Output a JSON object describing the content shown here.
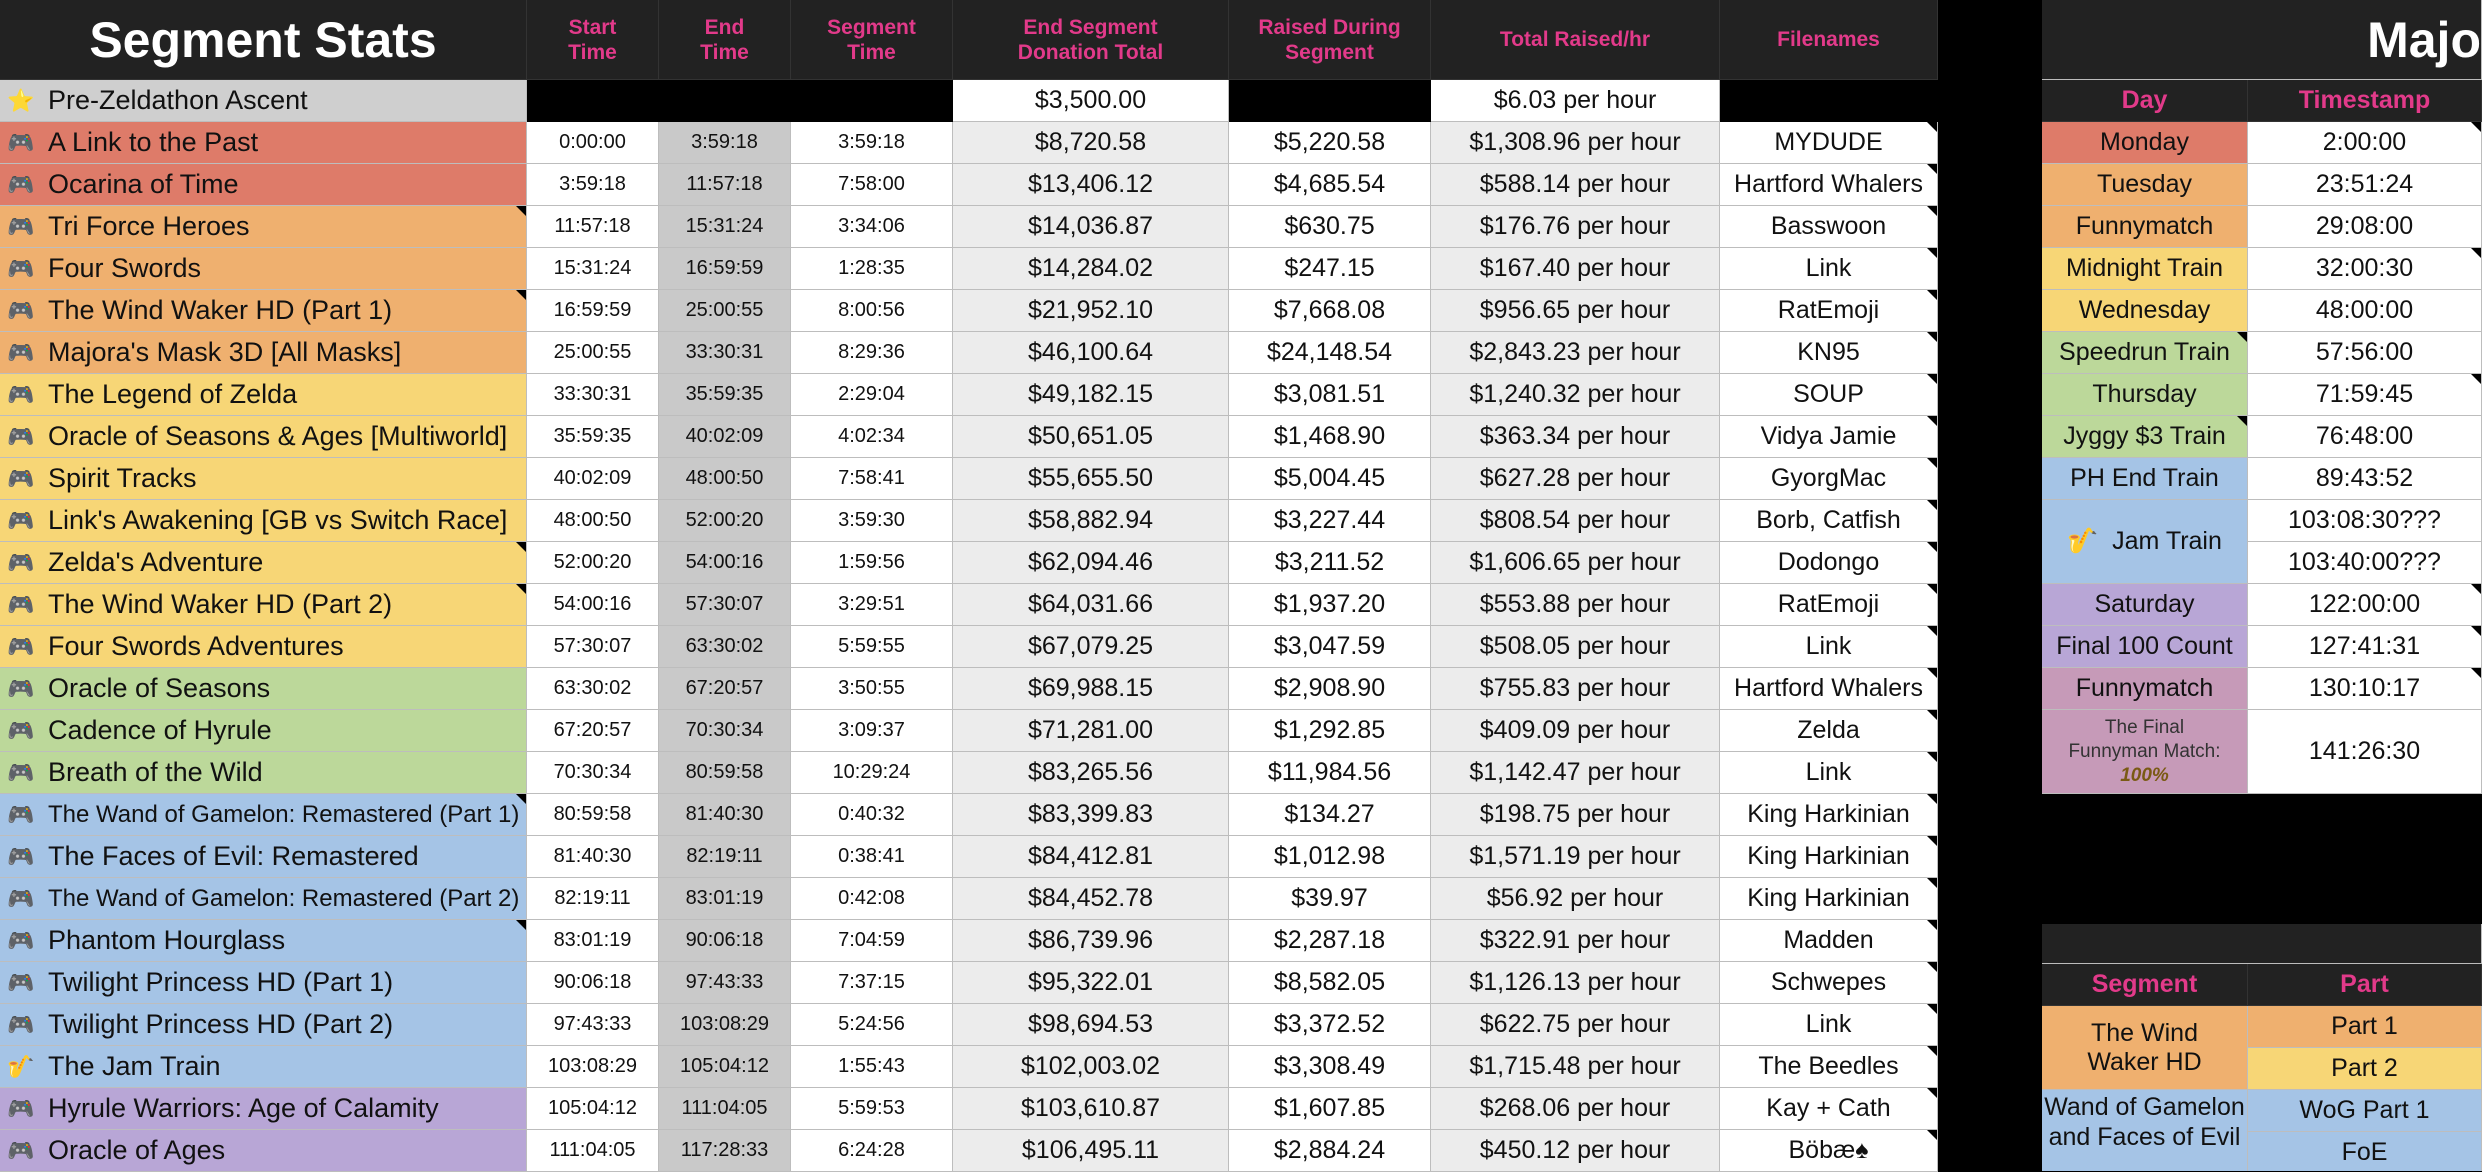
{
  "left": {
    "title": "Segment Stats",
    "headers": {
      "start": [
        "Start",
        "Time"
      ],
      "end": [
        "End",
        "Time"
      ],
      "segment": [
        "Segment",
        "Time"
      ],
      "donation": [
        "End Segment",
        "Donation Total"
      ],
      "raised": [
        "Raised During",
        "Segment"
      ],
      "rate": "Total Raised/hr",
      "filenames": "Filenames"
    },
    "pre": {
      "icon": "⭐",
      "name": "Pre-Zeldathon Ascent",
      "total": "$3,500.00",
      "rate": "$6.03 per hour"
    },
    "rows": [
      {
        "icon": "🎮",
        "name": "A Link to the Past",
        "start": "0:00:00",
        "end": "3:59:18",
        "seg": "3:59:18",
        "total": "$8,720.58",
        "raised": "$5,220.58",
        "rate": "$1,308.96 per hour",
        "file": "MYDUDE",
        "color": "orange-red"
      },
      {
        "icon": "🎮",
        "name": "Ocarina of Time",
        "start": "3:59:18",
        "end": "11:57:18",
        "seg": "7:58:00",
        "total": "$13,406.12",
        "raised": "$4,685.54",
        "rate": "$588.14 per hour",
        "file": "Hartford Whalers",
        "color": "orange-red"
      },
      {
        "icon": "🎮",
        "name": "Tri Force Heroes",
        "start": "11:57:18",
        "end": "15:31:24",
        "seg": "3:34:06",
        "total": "$14,036.87",
        "raised": "$630.75",
        "rate": "$176.76 per hour",
        "file": "Basswoon",
        "color": "orange"
      },
      {
        "icon": "🎮",
        "name": "Four Swords",
        "start": "15:31:24",
        "end": "16:59:59",
        "seg": "1:28:35",
        "total": "$14,284.02",
        "raised": "$247.15",
        "rate": "$167.40 per hour",
        "file": "Link",
        "color": "orange"
      },
      {
        "icon": "🎮",
        "name": "The Wind Waker HD",
        "name_it": "(Part 1)",
        "start": "16:59:59",
        "end": "25:00:55",
        "seg": "8:00:56",
        "total": "$21,952.10",
        "raised": "$7,668.08",
        "rate": "$956.65 per hour",
        "file": "RatEmoji",
        "color": "orange"
      },
      {
        "icon": "🎮",
        "name": "Majora's Mask 3D [All Masks]",
        "start": "25:00:55",
        "end": "33:30:31",
        "seg": "8:29:36",
        "total": "$46,100.64",
        "raised": "$24,148.54",
        "rate": "$2,843.23 per hour",
        "file": "KN95",
        "color": "orange"
      },
      {
        "icon": "🎮",
        "name": "The Legend of Zelda",
        "start": "33:30:31",
        "end": "35:59:35",
        "seg": "2:29:04",
        "total": "$49,182.15",
        "raised": "$3,081.51",
        "rate": "$1,240.32 per hour",
        "file": "SOUP",
        "color": "yellow"
      },
      {
        "icon": "🎮",
        "name": "Oracle of Seasons & Ages [Multiworld]",
        "start": "35:59:35",
        "end": "40:02:09",
        "seg": "4:02:34",
        "total": "$50,651.05",
        "raised": "$1,468.90",
        "rate": "$363.34 per hour",
        "file": "Vidya Jamie",
        "color": "yellow"
      },
      {
        "icon": "🎮",
        "name": "Spirit Tracks",
        "start": "40:02:09",
        "end": "48:00:50",
        "seg": "7:58:41",
        "total": "$55,655.50",
        "raised": "$5,004.45",
        "rate": "$627.28 per hour",
        "file": "GyorgMac",
        "color": "yellow"
      },
      {
        "icon": "🎮",
        "name": "Link's Awakening [GB vs Switch Race]",
        "start": "48:00:50",
        "end": "52:00:20",
        "seg": "3:59:30",
        "total": "$58,882.94",
        "raised": "$3,227.44",
        "rate": "$808.54 per hour",
        "file": "Borb, Catfish",
        "color": "yellow"
      },
      {
        "icon": "🎮",
        "name": "Zelda's Adventure",
        "start": "52:00:20",
        "end": "54:00:16",
        "seg": "1:59:56",
        "total": "$62,094.46",
        "raised": "$3,211.52",
        "rate": "$1,606.65 per hour",
        "file": "Dodongo",
        "color": "yellow"
      },
      {
        "icon": "🎮",
        "name": "The Wind Waker HD",
        "name_it": "(Part 2)",
        "start": "54:00:16",
        "end": "57:30:07",
        "seg": "3:29:51",
        "total": "$64,031.66",
        "raised": "$1,937.20",
        "rate": "$553.88 per hour",
        "file": "RatEmoji",
        "color": "yellow"
      },
      {
        "icon": "🎮",
        "name": "Four Swords Adventures",
        "start": "57:30:07",
        "end": "63:30:02",
        "seg": "5:59:55",
        "total": "$67,079.25",
        "raised": "$3,047.59",
        "rate": "$508.05 per hour",
        "file": "Link",
        "color": "yellow"
      },
      {
        "icon": "🎮",
        "name": "Oracle of Seasons",
        "start": "63:30:02",
        "end": "67:20:57",
        "seg": "3:50:55",
        "total": "$69,988.15",
        "raised": "$2,908.90",
        "rate": "$755.83 per hour",
        "file": "Hartford Whalers",
        "color": "green"
      },
      {
        "icon": "🎮",
        "name": "Cadence of Hyrule",
        "start": "67:20:57",
        "end": "70:30:34",
        "seg": "3:09:37",
        "total": "$71,281.00",
        "raised": "$1,292.85",
        "rate": "$409.09 per hour",
        "file": "Zelda",
        "color": "green"
      },
      {
        "icon": "🎮",
        "name": "Breath of the Wild",
        "start": "70:30:34",
        "end": "80:59:58",
        "seg": "10:29:24",
        "total": "$83,265.56",
        "raised": "$11,984.56",
        "rate": "$1,142.47 per hour",
        "file": "Link",
        "color": "green"
      },
      {
        "icon": "🎮",
        "name": "The Wand of Gamelon: Remastered",
        "name_it": "(Part 1)",
        "small": true,
        "start": "80:59:58",
        "end": "81:40:30",
        "seg": "0:40:32",
        "total": "$83,399.83",
        "raised": "$134.27",
        "rate": "$198.75 per hour",
        "file": "King Harkinian",
        "color": "blue"
      },
      {
        "icon": "🎮",
        "name": "The Faces of Evil: Remastered",
        "start": "81:40:30",
        "end": "82:19:11",
        "seg": "0:38:41",
        "total": "$84,412.81",
        "raised": "$1,012.98",
        "rate": "$1,571.19 per hour",
        "file": "King Harkinian",
        "color": "blue"
      },
      {
        "icon": "🎮",
        "name": "The Wand of Gamelon: Remastered",
        "name_it": "(Part 2)",
        "small": true,
        "start": "82:19:11",
        "end": "83:01:19",
        "seg": "0:42:08",
        "total": "$84,452.78",
        "raised": "$39.97",
        "rate": "$56.92 per hour",
        "file": "King Harkinian",
        "color": "blue"
      },
      {
        "icon": "🎮",
        "name": "Phantom Hourglass",
        "start": "83:01:19",
        "end": "90:06:18",
        "seg": "7:04:59",
        "total": "$86,739.96",
        "raised": "$2,287.18",
        "rate": "$322.91 per hour",
        "file": "Madden",
        "color": "blue"
      },
      {
        "icon": "🎮",
        "name": "Twilight Princess HD",
        "name_it": "(Part 1)",
        "start": "90:06:18",
        "end": "97:43:33",
        "seg": "7:37:15",
        "total": "$95,322.01",
        "raised": "$8,582.05",
        "rate": "$1,126.13 per hour",
        "file": "Schwepes",
        "color": "blue"
      },
      {
        "icon": "🎮",
        "name": "Twilight Princess HD",
        "name_it": "(Part 2)",
        "start": "97:43:33",
        "end": "103:08:29",
        "seg": "5:24:56",
        "total": "$98,694.53",
        "raised": "$3,372.52",
        "rate": "$622.75 per hour",
        "file": "Link",
        "color": "blue"
      },
      {
        "icon": "🎷",
        "name": "The Jam Train",
        "start": "103:08:29",
        "end": "105:04:12",
        "seg": "1:55:43",
        "total": "$102,003.02",
        "raised": "$3,308.49",
        "rate": "$1,715.48 per hour",
        "file": "The Beedles",
        "color": "blue"
      },
      {
        "icon": "🎮",
        "name": "Hyrule Warriors: Age of Calamity",
        "start": "105:04:12",
        "end": "111:04:05",
        "seg": "5:59:53",
        "total": "$103,610.87",
        "raised": "$1,607.85",
        "rate": "$268.06 per hour",
        "file": "Kay + Cath",
        "color": "purple"
      },
      {
        "icon": "🎮",
        "name": "Oracle of Ages",
        "start": "111:04:05",
        "end": "117:28:33",
        "seg": "6:24:28",
        "total": "$106,495.11",
        "raised": "$2,884.24",
        "rate": "$450.12 per hour",
        "file": "Böbæ♠",
        "color": "purple"
      }
    ]
  },
  "right": {
    "title": "Majo",
    "day_header": "Day",
    "ts_header": "Timestamp",
    "milestones": [
      {
        "label": "Monday",
        "ts": "2:00:00",
        "color": "#de7b69"
      },
      {
        "label": "Tuesday",
        "ts": "23:51:24",
        "color": "#efb06f"
      },
      {
        "label": "Funnymatch",
        "ts": "29:08:00",
        "color": "#efb06f"
      },
      {
        "label": "Midnight Train",
        "ts": "32:00:30",
        "color": "#f7d676"
      },
      {
        "label": "Wednesday",
        "ts": "48:00:00",
        "color": "#f7d676"
      },
      {
        "label": "Speedrun Train",
        "ts": "57:56:00",
        "color": "#bcd89a"
      },
      {
        "label": "Thursday",
        "ts": "71:59:45",
        "color": "#bcd89a"
      },
      {
        "label": "Jyggy $3 Train",
        "ts": "76:48:00",
        "color": "#bcd89a"
      },
      {
        "label": "PH End Train",
        "ts": "89:43:52",
        "color": "#a5c4e6"
      }
    ],
    "jam": {
      "icon": "🎷",
      "label": "Jam Train",
      "ts1": "103:08:30???",
      "ts2": "103:40:00???"
    },
    "milestones2": [
      {
        "label": "Saturday",
        "ts": "122:00:00",
        "color": "#b8a6d6"
      },
      {
        "label": "Final 100 Count",
        "ts": "127:41:31",
        "color": "#b8a6d6"
      },
      {
        "label": "Funnymatch",
        "ts": "130:10:17",
        "color": "#c69ab8"
      }
    ],
    "final": {
      "line1": "The Final",
      "line2": "Funnyman Match:",
      "line3": "100%",
      "ts": "141:26:30"
    },
    "seg_header": "Segment",
    "part_header": "Part",
    "segs": [
      {
        "seg": "The Wind Waker HD",
        "parts": [
          "Part 1",
          "Part 2"
        ]
      },
      {
        "seg": "Wand of Gamelon and Faces of Evil",
        "parts": [
          "WoG Part 1",
          "FoE"
        ]
      }
    ]
  }
}
